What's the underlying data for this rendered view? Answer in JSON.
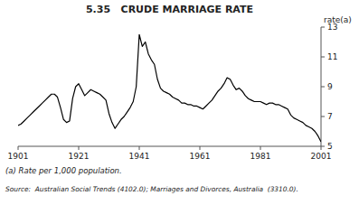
{
  "chart_data": {
    "type": "line",
    "title": "5.35   CRUDE MARRIAGE RATE",
    "y_label": "rate(a)",
    "annotations": [
      "(a) Rate per 1,000 population.",
      "Source:  Australian Social Trends (4102.0); Marriages and Divorces, Australia  (3310.0)."
    ],
    "color": "#000000",
    "grid": false,
    "xlim": [
      1901,
      2001
    ],
    "ylim": [
      5,
      13
    ],
    "xticks": [
      1901,
      1921,
      1941,
      1961,
      1981,
      2001
    ],
    "yticks": [
      5,
      7,
      9,
      11,
      13
    ],
    "x": [
      1901,
      1902,
      1903,
      1904,
      1905,
      1906,
      1907,
      1908,
      1909,
      1910,
      1911,
      1912,
      1913,
      1914,
      1915,
      1916,
      1917,
      1918,
      1919,
      1920,
      1921,
      1922,
      1923,
      1924,
      1925,
      1926,
      1927,
      1928,
      1929,
      1930,
      1931,
      1932,
      1933,
      1934,
      1935,
      1936,
      1937,
      1938,
      1939,
      1940,
      1941,
      1942,
      1943,
      1944,
      1945,
      1946,
      1947,
      1948,
      1949,
      1950,
      1951,
      1952,
      1953,
      1954,
      1955,
      1956,
      1957,
      1958,
      1959,
      1960,
      1961,
      1962,
      1963,
      1964,
      1965,
      1966,
      1967,
      1968,
      1969,
      1970,
      1971,
      1972,
      1973,
      1974,
      1975,
      1976,
      1977,
      1978,
      1979,
      1980,
      1981,
      1982,
      1983,
      1984,
      1985,
      1986,
      1987,
      1988,
      1989,
      1990,
      1991,
      1992,
      1993,
      1994,
      1995,
      1996,
      1997,
      1998,
      1999,
      2000,
      2001
    ],
    "values": [
      6.4,
      6.5,
      6.7,
      6.9,
      7.1,
      7.3,
      7.5,
      7.7,
      7.9,
      8.1,
      8.3,
      8.5,
      8.5,
      8.3,
      7.6,
      6.8,
      6.6,
      6.7,
      8.2,
      9.0,
      9.2,
      8.8,
      8.4,
      8.6,
      8.8,
      8.7,
      8.6,
      8.5,
      8.3,
      8.1,
      7.2,
      6.6,
      6.2,
      6.5,
      6.8,
      7.0,
      7.3,
      7.6,
      8.0,
      9.0,
      12.5,
      11.7,
      12.0,
      11.2,
      10.8,
      10.5,
      9.5,
      8.9,
      8.7,
      8.6,
      8.5,
      8.3,
      8.2,
      8.1,
      7.9,
      7.9,
      7.8,
      7.8,
      7.7,
      7.7,
      7.6,
      7.5,
      7.7,
      7.9,
      8.1,
      8.4,
      8.7,
      8.9,
      9.2,
      9.6,
      9.5,
      9.1,
      8.8,
      8.9,
      8.7,
      8.4,
      8.2,
      8.1,
      8.0,
      8.0,
      8.0,
      7.9,
      7.8,
      7.9,
      7.9,
      7.8,
      7.8,
      7.7,
      7.6,
      7.5,
      7.1,
      6.9,
      6.8,
      6.7,
      6.6,
      6.4,
      6.3,
      6.2,
      6.0,
      5.7,
      5.3
    ]
  }
}
